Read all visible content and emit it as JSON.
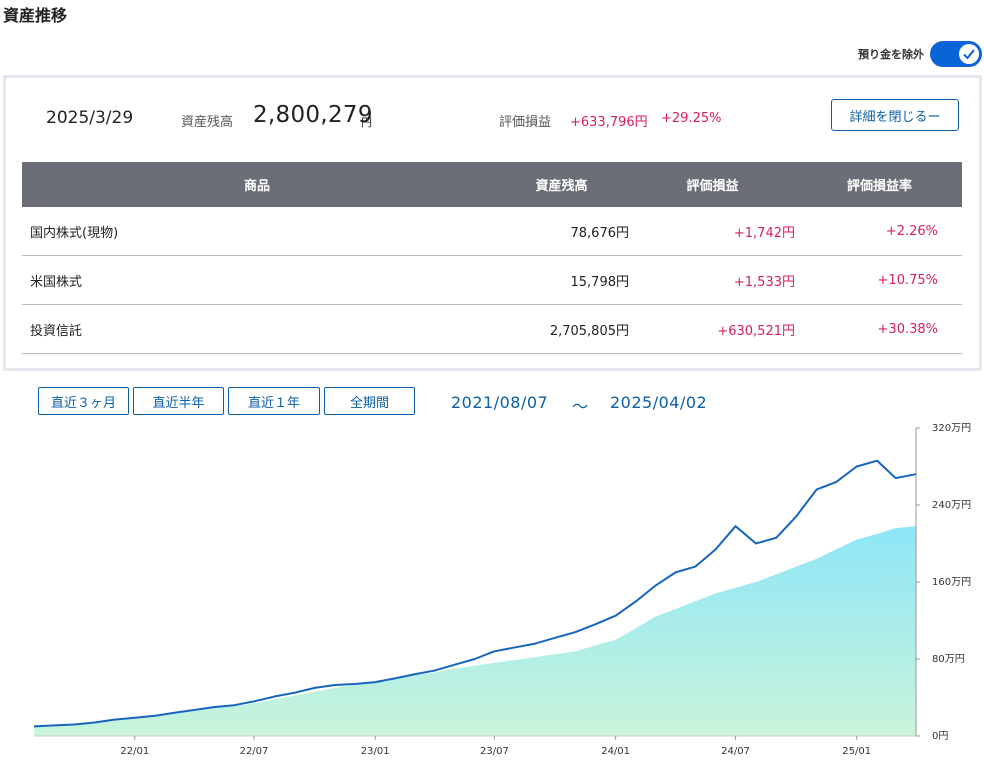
{
  "header": {
    "title": "資産推移"
  },
  "toggle": {
    "label": "預り金を除外",
    "checked": true
  },
  "summary": {
    "date": "2025/3/29",
    "balance_label": "資産残高",
    "balance_value": "2,800,279",
    "balance_unit": "円",
    "pl_label": "評価損益",
    "pl_value": "+633,796円",
    "pl_rate": "+29.25%",
    "close_button": "詳細を閉じるー"
  },
  "table": {
    "headers": [
      "商品",
      "資産残高",
      "評価損益",
      "評価損益率"
    ],
    "rows": [
      {
        "name": "国内株式(現物)",
        "balance": "78,676円",
        "pl": "+1,742円",
        "rate": "+2.26%"
      },
      {
        "name": "米国株式",
        "balance": "15,798円",
        "pl": "+1,533円",
        "rate": "+10.75%"
      },
      {
        "name": "投資信託",
        "balance": "2,705,805円",
        "pl": "+630,521円",
        "rate": "+30.38%"
      }
    ]
  },
  "period_buttons": [
    "直近３ヶ月",
    "直近半年",
    "直近１年",
    "全期間"
  ],
  "range": {
    "from": "2021/08/07",
    "sep": "～",
    "to": "2025/04/02"
  },
  "chart_data": {
    "type": "area",
    "x_ticks": [
      "22/01",
      "22/07",
      "23/01",
      "23/07",
      "24/01",
      "24/07",
      "25/01"
    ],
    "y_ticks": [
      "0円",
      "80万円",
      "160万円",
      "240万円",
      "320万円"
    ],
    "ylim": [
      0,
      320
    ],
    "y_unit": "万円",
    "xlim": [
      "2021/08/07",
      "2025/04/02"
    ],
    "x_format": "YYYY-MM",
    "series": [
      {
        "kind": "line",
        "color": "#1565c0",
        "x": [
          "2021-08",
          "2021-09",
          "2021-10",
          "2021-11",
          "2021-12",
          "2022-01",
          "2022-02",
          "2022-03",
          "2022-04",
          "2022-05",
          "2022-06",
          "2022-07",
          "2022-08",
          "2022-09",
          "2022-10",
          "2022-11",
          "2022-12",
          "2023-01",
          "2023-02",
          "2023-03",
          "2023-04",
          "2023-05",
          "2023-06",
          "2023-07",
          "2023-08",
          "2023-09",
          "2023-10",
          "2023-11",
          "2023-12",
          "2024-01",
          "2024-02",
          "2024-03",
          "2024-04",
          "2024-05",
          "2024-06",
          "2024-07",
          "2024-08",
          "2024-09",
          "2024-10",
          "2024-11",
          "2024-12",
          "2025-01",
          "2025-02",
          "2025-03",
          "2025-04"
        ],
        "values": [
          10,
          11,
          12,
          14,
          17,
          19,
          21,
          24,
          27,
          30,
          32,
          36,
          41,
          45,
          50,
          53,
          54,
          56,
          60,
          64,
          68,
          74,
          80,
          88,
          92,
          96,
          102,
          108,
          116,
          125,
          140,
          156,
          170,
          176,
          194,
          218,
          200,
          206,
          228,
          256,
          264,
          280,
          286,
          268,
          272
        ]
      },
      {
        "kind": "area",
        "gradient_top": "#8ee6f8",
        "gradient_bottom": "#c9f4da",
        "x": [
          "2021-08",
          "2021-09",
          "2021-10",
          "2021-11",
          "2021-12",
          "2022-01",
          "2022-02",
          "2022-03",
          "2022-04",
          "2022-05",
          "2022-06",
          "2022-07",
          "2022-08",
          "2022-09",
          "2022-10",
          "2022-11",
          "2022-12",
          "2023-01",
          "2023-02",
          "2023-03",
          "2023-04",
          "2023-05",
          "2023-06",
          "2023-07",
          "2023-08",
          "2023-09",
          "2023-10",
          "2023-11",
          "2023-12",
          "2024-01",
          "2024-02",
          "2024-03",
          "2024-04",
          "2024-05",
          "2024-06",
          "2024-07",
          "2024-08",
          "2024-09",
          "2024-10",
          "2024-11",
          "2024-12",
          "2025-01",
          "2025-02",
          "2025-03",
          "2025-04"
        ],
        "values": [
          10,
          11,
          12,
          14,
          16,
          18,
          20,
          23,
          26,
          29,
          31,
          34,
          38,
          42,
          46,
          50,
          53,
          56,
          59,
          63,
          66,
          70,
          73,
          76,
          79,
          82,
          85,
          88,
          94,
          100,
          112,
          124,
          132,
          140,
          148,
          154,
          160,
          168,
          176,
          184,
          194,
          204,
          210,
          216,
          218
        ]
      }
    ]
  }
}
